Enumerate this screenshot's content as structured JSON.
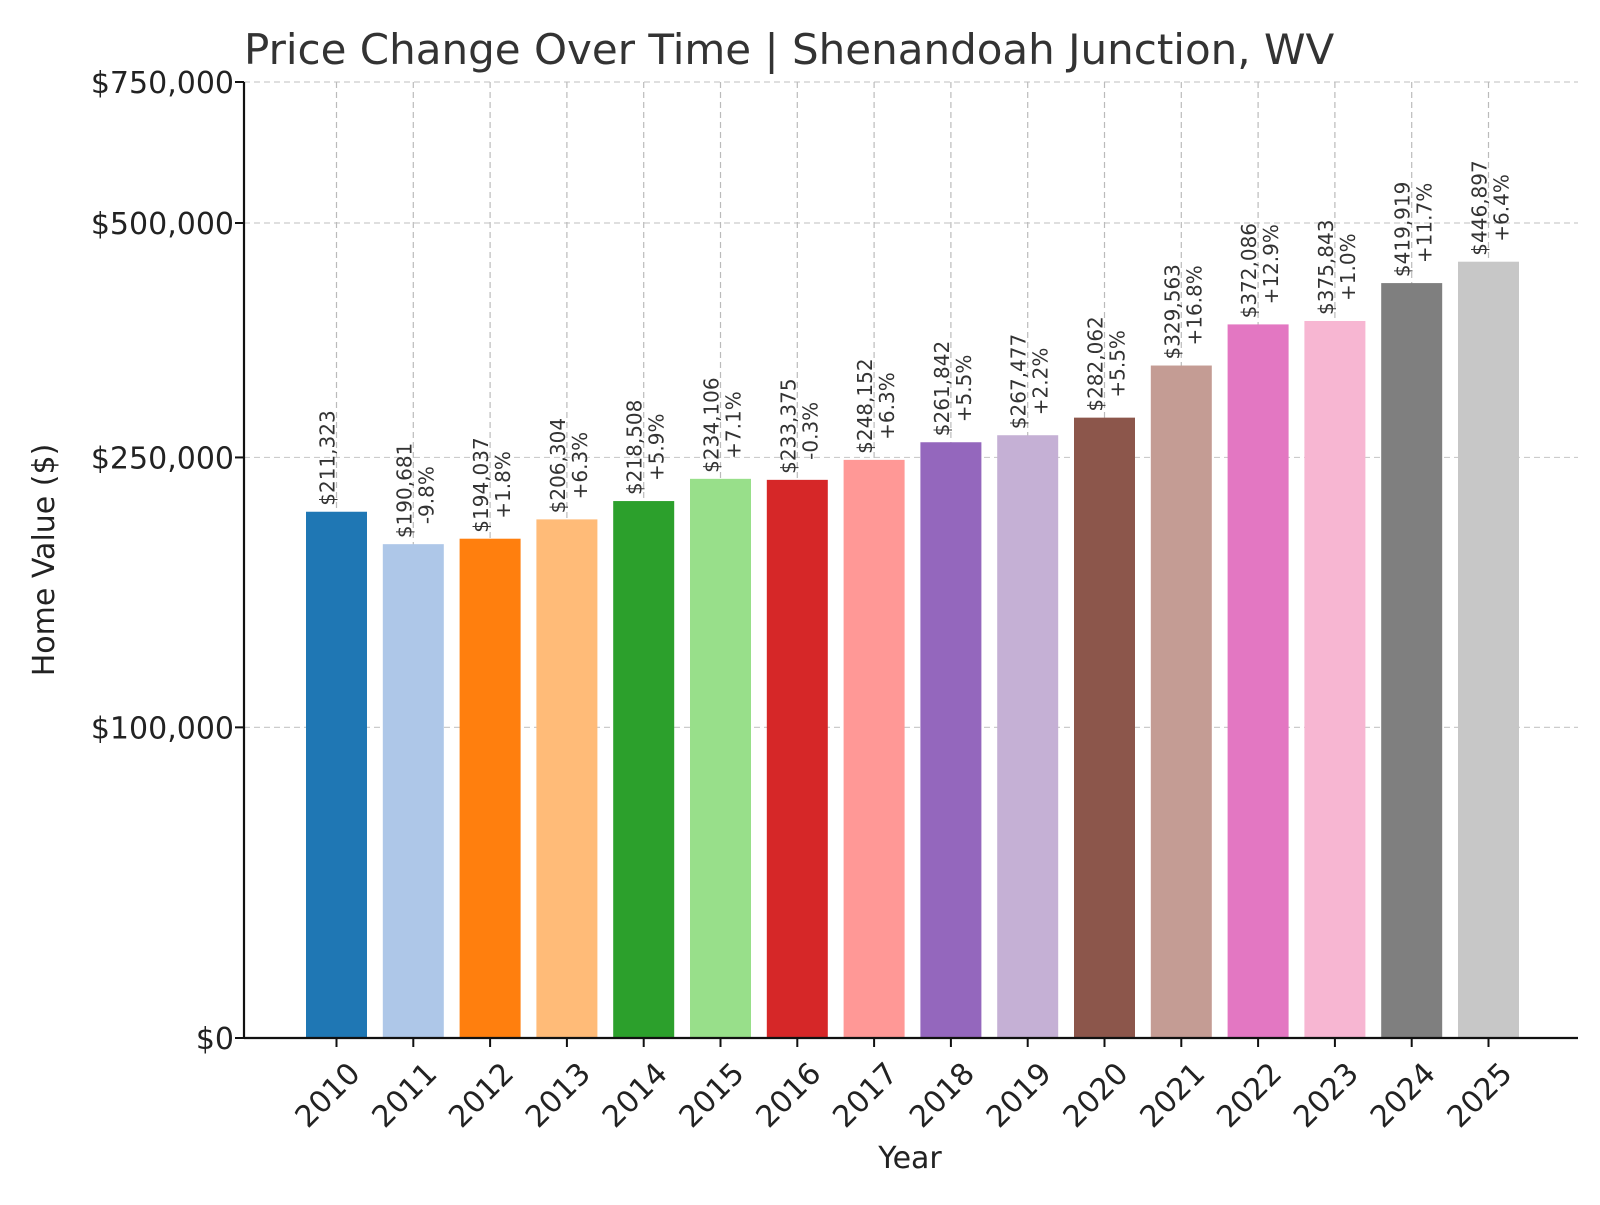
{
  "chart_data": {
    "type": "bar",
    "title": "Price Change Over Time | Shenandoah Junction, WV",
    "xlabel": "Year",
    "ylabel": "Home Value ($)",
    "categories": [
      "2010",
      "2011",
      "2012",
      "2013",
      "2014",
      "2015",
      "2016",
      "2017",
      "2018",
      "2019",
      "2020",
      "2021",
      "2022",
      "2023",
      "2024",
      "2025"
    ],
    "values": [
      211323,
      190681,
      194037,
      206304,
      218508,
      234106,
      233375,
      248152,
      261842,
      267477,
      282062,
      329563,
      372086,
      375843,
      419919,
      446897
    ],
    "value_labels": [
      "$211,323",
      "$190,681",
      "$194,037",
      "$206,304",
      "$218,508",
      "$234,106",
      "$233,375",
      "$248,152",
      "$261,842",
      "$267,477",
      "$282,062",
      "$329,563",
      "$372,086",
      "$375,843",
      "$419,919",
      "$446,897"
    ],
    "change_labels": [
      "",
      "-9.8%",
      "+1.8%",
      "+6.3%",
      "+5.9%",
      "+7.1%",
      "-0.3%",
      "+6.3%",
      "+5.5%",
      "+2.2%",
      "+5.5%",
      "+16.8%",
      "+12.9%",
      "+1.0%",
      "+11.7%",
      "+6.4%"
    ],
    "colors": [
      "#1f77b4",
      "#aec7e8",
      "#ff7f0e",
      "#ffbb78",
      "#2ca02c",
      "#98df8a",
      "#d62728",
      "#ff9896",
      "#9467bd",
      "#c5b0d5",
      "#8c564b",
      "#c49c94",
      "#e377c2",
      "#f7b6d2",
      "#7f7f7f",
      "#c7c7c7"
    ],
    "y_ticks": [
      0,
      100000,
      250000,
      500000,
      750000
    ],
    "y_tick_labels": [
      "$0",
      "$100,000",
      "$250,000",
      "$500,000",
      "$750,000"
    ],
    "ylim": [
      0,
      750000
    ],
    "y_scale": "symlog",
    "grid": true
  }
}
